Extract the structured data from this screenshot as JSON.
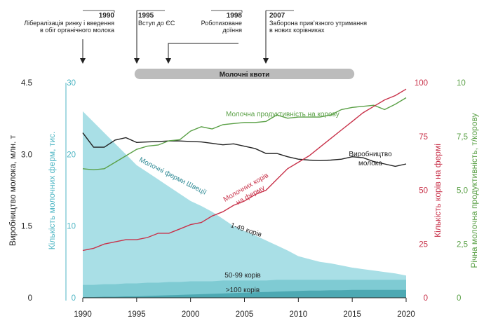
{
  "chart_data": {
    "type": "area+line",
    "x_axis": {
      "ticks": [
        "1990",
        "1995",
        "2000",
        "2005",
        "2010",
        "2015",
        "2020"
      ],
      "range": [
        1990,
        2020
      ]
    },
    "axes": {
      "production": {
        "label": "Виробництво молока, млн. т",
        "ticks": [
          "0",
          "1.5",
          "3.0",
          "4.5"
        ],
        "range": [
          0,
          4.5
        ],
        "color": "#222222"
      },
      "farms": {
        "label": "Кількість молочних ферм, тис.",
        "ticks": [
          "0",
          "10",
          "20",
          "30"
        ],
        "range": [
          0,
          30
        ],
        "color": "#4fb6c4"
      },
      "cows_per_farm": {
        "label": "Кількість корів на фермі",
        "ticks": [
          "0",
          "25",
          "50",
          "75",
          "100"
        ],
        "range": [
          0,
          100
        ],
        "color": "#c8324a"
      },
      "productivity": {
        "label": "Річна молочна продуктивність, т/корову",
        "ticks": [
          "0",
          "2,5",
          "5,0",
          "7,5",
          "10"
        ],
        "range": [
          0,
          10
        ],
        "color": "#5aa046"
      }
    },
    "x": [
      1990,
      1991,
      1992,
      1993,
      1994,
      1995,
      1996,
      1997,
      1998,
      1999,
      2000,
      2001,
      2002,
      2003,
      2004,
      2005,
      2006,
      2007,
      2008,
      2009,
      2010,
      2011,
      2012,
      2013,
      2014,
      2015,
      2016,
      2017,
      2018,
      2019,
      2020
    ],
    "series": [
      {
        "name": "Виробництво молока",
        "axis": "production",
        "color": "#222222",
        "values": [
          3.45,
          3.15,
          3.15,
          3.3,
          3.35,
          3.25,
          3.26,
          3.27,
          3.28,
          3.28,
          3.27,
          3.26,
          3.23,
          3.2,
          3.22,
          3.17,
          3.12,
          3.02,
          3.02,
          2.95,
          2.9,
          2.88,
          2.87,
          2.88,
          2.9,
          2.95,
          2.93,
          2.85,
          2.8,
          2.75,
          2.8
        ]
      },
      {
        "name": "Молочна продуктивність на корову",
        "axis": "productivity",
        "color": "#5aa046",
        "values": [
          6.0,
          5.95,
          6.0,
          6.3,
          6.6,
          6.9,
          7.05,
          7.1,
          7.3,
          7.35,
          7.75,
          7.95,
          7.85,
          8.05,
          8.1,
          8.15,
          8.15,
          8.2,
          8.5,
          8.35,
          8.4,
          8.4,
          8.4,
          8.5,
          8.75,
          8.85,
          8.9,
          8.95,
          8.75,
          9.0,
          9.3
        ]
      },
      {
        "name": "Молочних корів на ферму",
        "axis": "cows_per_farm",
        "color": "#c8324a",
        "values": [
          22,
          23,
          25,
          26,
          27,
          27,
          28,
          30,
          30,
          32,
          34,
          35,
          38,
          40,
          43,
          45,
          48,
          50,
          55,
          60,
          63,
          66,
          70,
          74,
          78,
          82,
          86,
          89,
          92,
          94,
          97
        ]
      },
      {
        "name": "Молочні ферми Швеції",
        "axis": "farms",
        "color": "#4fb6c4",
        "role": "total_farms",
        "values": [
          26,
          24.5,
          23,
          21.5,
          20,
          18.5,
          17.5,
          16.5,
          15.5,
          14.5,
          13.5,
          12.8,
          12,
          11,
          10,
          9.3,
          8.7,
          8,
          7.3,
          6.6,
          5.8,
          5.4,
          5,
          4.8,
          4.5,
          4.2,
          4,
          3.8,
          3.6,
          3.4,
          3.1
        ]
      },
      {
        "name": "50-99 корів",
        "axis": "farms",
        "color": "#5bb8c2",
        "role": "farms_50_plus",
        "values": [
          1.8,
          1.8,
          1.9,
          1.9,
          2.0,
          2.0,
          2.1,
          2.1,
          2.2,
          2.2,
          2.3,
          2.3,
          2.3,
          2.4,
          2.4,
          2.4,
          2.4,
          2.4,
          2.5,
          2.5,
          2.5,
          2.5,
          2.5,
          2.5,
          2.5,
          2.5,
          2.5,
          2.5,
          2.5,
          2.5,
          2.5
        ]
      },
      {
        "name": ">100 корів",
        "axis": "farms",
        "color": "#3f9ea8",
        "role": "farms_100_plus",
        "values": [
          0.1,
          0.1,
          0.15,
          0.15,
          0.2,
          0.2,
          0.25,
          0.3,
          0.35,
          0.4,
          0.45,
          0.5,
          0.55,
          0.6,
          0.65,
          0.7,
          0.75,
          0.8,
          0.85,
          0.9,
          0.95,
          1.0,
          1.0,
          1.05,
          1.05,
          1.1,
          1.1,
          1.1,
          1.1,
          1.1,
          1.1
        ]
      }
    ],
    "series_labels": {
      "production": [
        "Виробництво",
        "молока"
      ],
      "productivity": "Молочна продуктивність на корову",
      "cows": [
        "Молочних корів",
        "на ферму"
      ],
      "farms": "Молочні ферми Швеції",
      "small": "1-49 корів",
      "mid": "50-99 корів",
      "large": ">100 корів"
    },
    "quota": {
      "label": "Молочні квоти",
      "from": 1995,
      "to": 2015
    },
    "annotations": [
      {
        "year": "1990",
        "x": 1990,
        "text": [
          "Лібералізація ринку і введення",
          "в обіг органічного молока"
        ]
      },
      {
        "year": "1995",
        "x": 1995,
        "text": [
          "Вступ до ЄС"
        ]
      },
      {
        "year": "1998",
        "x": 1998,
        "text": [
          "Роботизоване",
          "доїння"
        ]
      },
      {
        "year": "2007",
        "x": 2007,
        "text": [
          "Заборона прив’язного утримання",
          "в нових корівниках"
        ]
      }
    ]
  }
}
